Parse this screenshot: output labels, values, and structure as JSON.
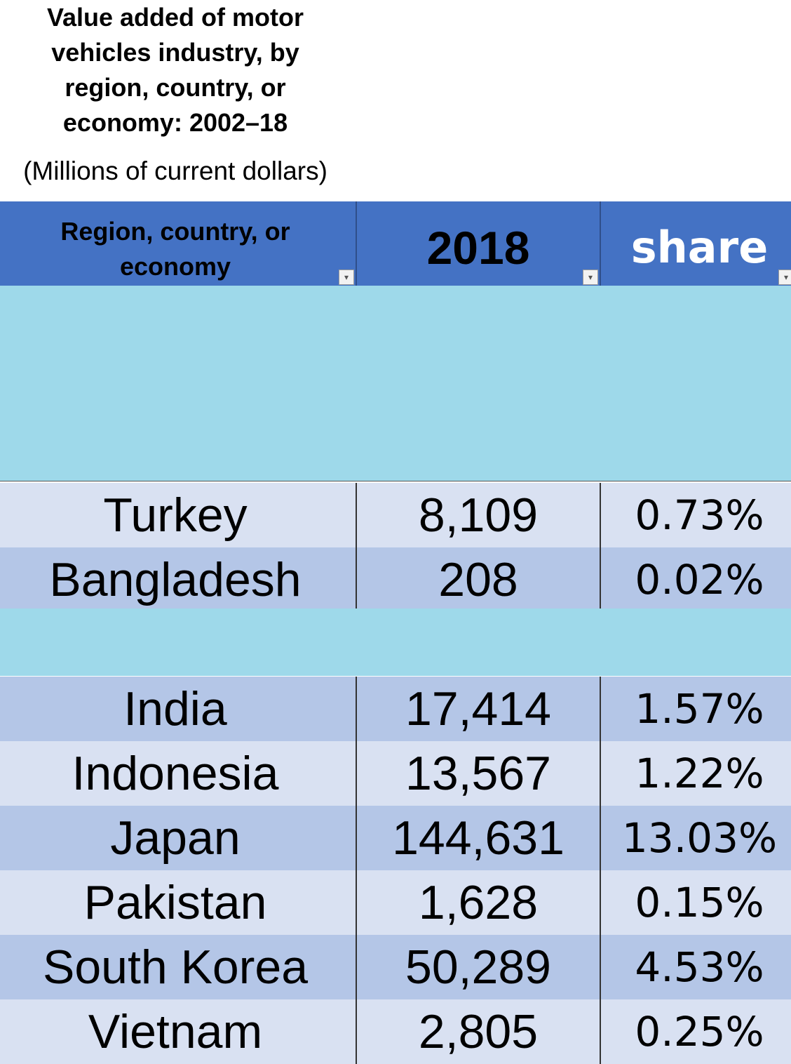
{
  "chart_data": {
    "type": "table",
    "title_lines": [
      "Value added of motor",
      "vehicles industry, by",
      "region, country, or",
      "economy: 2002–18"
    ],
    "subtitle": "(Millions of current dollars)",
    "columns": {
      "col1_lines": [
        "Region, country, or",
        "economy"
      ],
      "col2": "2018",
      "col3": "share"
    },
    "rows": [
      {
        "name": "Turkey",
        "value": "8,109",
        "share": "0.73%"
      },
      {
        "name": "Bangladesh",
        "value": "208",
        "share": "0.02%"
      },
      {
        "name": "India",
        "value": "17,414",
        "share": "1.57%"
      },
      {
        "name": "Indonesia",
        "value": "13,567",
        "share": "1.22%"
      },
      {
        "name": "Japan",
        "value": "144,631",
        "share": "13.03%"
      },
      {
        "name": "Pakistan",
        "value": "1,628",
        "share": "0.15%"
      },
      {
        "name": "South Korea",
        "value": "50,289",
        "share": "4.53%"
      },
      {
        "name": "Vietnam",
        "value": "2,805",
        "share": "0.25%"
      }
    ]
  },
  "colors": {
    "header": "#4472C4",
    "band": "#9ED9EA",
    "row_light": "#D9E1F2",
    "row_dark": "#B4C6E7"
  }
}
